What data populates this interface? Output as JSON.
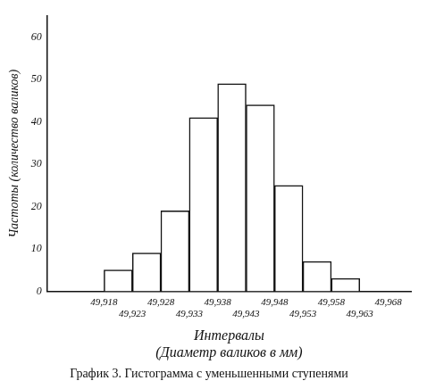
{
  "chart_data": {
    "type": "histogram",
    "title": "График 3. Гистограмма с уменьшенными ступенями",
    "x_label": "Интервалы\n(Диаметр валиков в мм)",
    "y_label": "Частоты (количество валиков)",
    "bins": [
      49.918,
      49.923,
      49.928,
      49.933,
      49.938,
      49.943,
      49.948,
      49.953,
      49.958,
      49.963,
      49.968
    ],
    "values": [
      5,
      9,
      19,
      41,
      49,
      44,
      25,
      7,
      3,
      0
    ],
    "color": "#ffffff",
    "xlim": [
      49.908,
      49.972
    ],
    "xticks": [
      {
        "value": 49.918,
        "label": "49,918"
      },
      {
        "value": 49.923,
        "label": "49,923"
      },
      {
        "value": 49.928,
        "label": "49,928"
      },
      {
        "value": 49.933,
        "label": "49,933"
      },
      {
        "value": 49.938,
        "label": "49,938"
      },
      {
        "value": 49.943,
        "label": "49,943"
      },
      {
        "value": 49.948,
        "label": "49,948"
      },
      {
        "value": 49.953,
        "label": "49,953"
      },
      {
        "value": 49.958,
        "label": "49,958"
      },
      {
        "value": 49.963,
        "label": "49,963"
      },
      {
        "value": 49.968,
        "label": "49,968"
      }
    ],
    "ylim": [
      0,
      65
    ],
    "yticks": [
      0,
      10,
      20,
      30,
      40,
      50,
      60
    ],
    "grid": false
  }
}
